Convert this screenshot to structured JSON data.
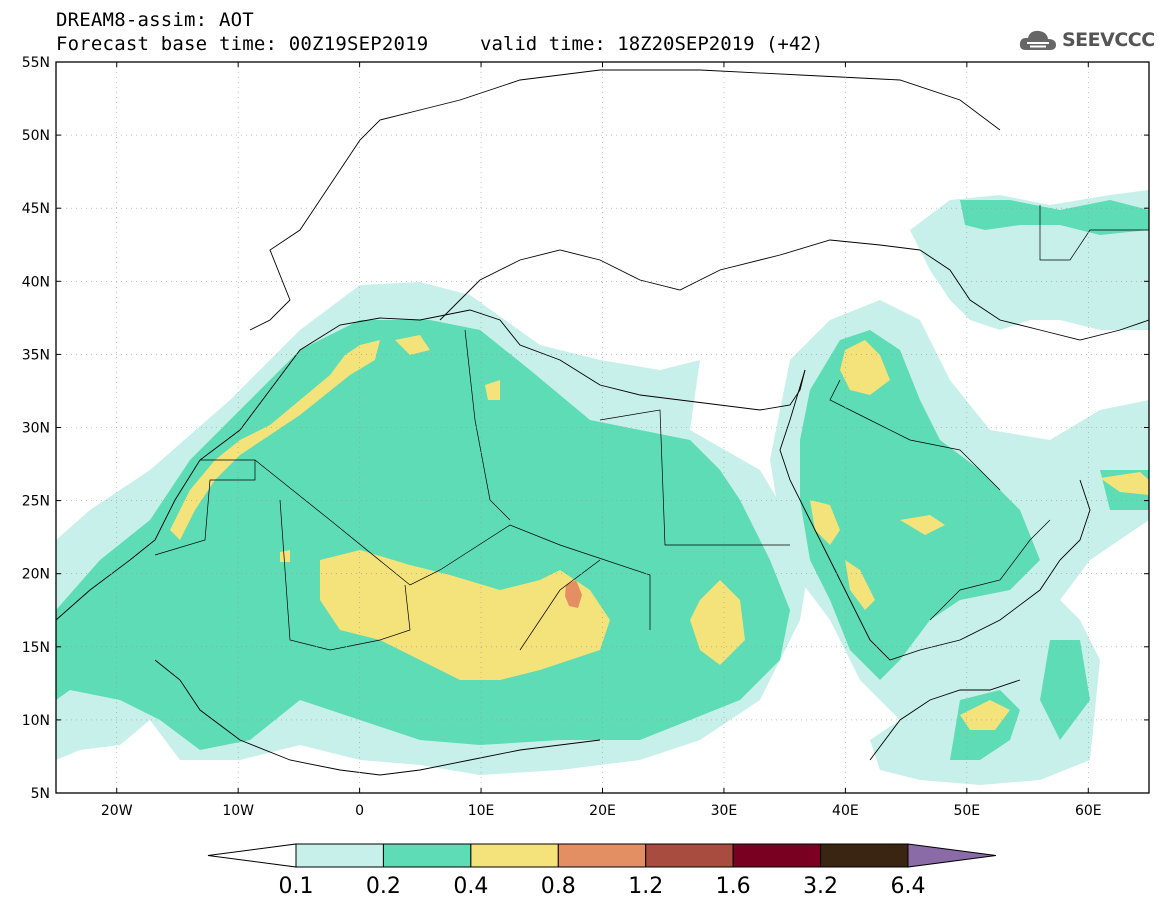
{
  "header": {
    "line1": "DREAM8-assim: AOT",
    "line2": "Forecast base time: 00Z19SEP2019",
    "valid_time": "valid time: 18Z20SEP2019 (+42)"
  },
  "logo": {
    "icon": "cloud-icon",
    "text": "SEEVCCC",
    "color": "#555555"
  },
  "map": {
    "lat_labels": [
      "55N",
      "50N",
      "45N",
      "40N",
      "35N",
      "30N",
      "25N",
      "20N",
      "15N",
      "10N",
      "5N"
    ],
    "lon_labels": [
      "20W",
      "10W",
      "0",
      "10E",
      "20E",
      "30E",
      "40E",
      "50E",
      "60E"
    ]
  },
  "colorbar": {
    "labels": [
      "0.1",
      "0.2",
      "0.4",
      "0.8",
      "1.2",
      "1.6",
      "3.2",
      "6.4"
    ],
    "colors": [
      "#ffffff",
      "#c7f0ea",
      "#5ddcb5",
      "#f4e27a",
      "#e48f63",
      "#a84c40",
      "#7a0021",
      "#3a2412",
      "#8b6aa8"
    ]
  }
}
